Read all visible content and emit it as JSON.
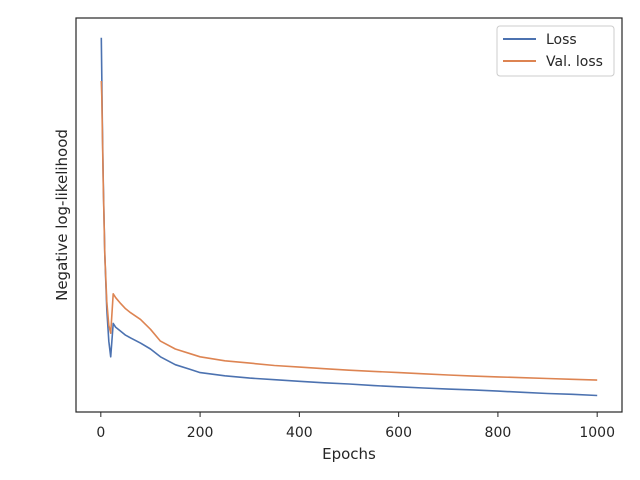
{
  "chart_data": {
    "type": "line",
    "title": "",
    "xlabel": "Epochs",
    "ylabel": "Negative log-likelihood",
    "xlim": [
      -50,
      1050
    ],
    "ylim": [
      0,
      1
    ],
    "x_ticks": [
      "0",
      "200",
      "400",
      "600",
      "800",
      "1000"
    ],
    "y_ticks_shown": false,
    "grid": false,
    "legend": "top-right",
    "series": [
      {
        "name": "Loss",
        "color": "#4c72b0",
        "x": [
          1,
          2,
          3,
          5,
          8,
          12,
          16,
          20,
          25,
          30,
          40,
          50,
          60,
          80,
          100,
          120,
          150,
          180,
          200,
          250,
          300,
          350,
          400,
          450,
          500,
          550,
          600,
          650,
          700,
          750,
          800,
          850,
          900,
          950,
          1000
        ],
        "values": [
          0.95,
          0.85,
          0.74,
          0.58,
          0.4,
          0.26,
          0.18,
          0.14,
          0.225,
          0.215,
          0.205,
          0.195,
          0.188,
          0.175,
          0.16,
          0.14,
          0.12,
          0.108,
          0.1,
          0.092,
          0.086,
          0.082,
          0.078,
          0.074,
          0.071,
          0.067,
          0.064,
          0.061,
          0.058,
          0.056,
          0.053,
          0.05,
          0.047,
          0.045,
          0.042
        ]
      },
      {
        "name": "Val. loss",
        "color": "#dd8452",
        "x": [
          1,
          2,
          3,
          5,
          8,
          12,
          16,
          20,
          25,
          30,
          40,
          50,
          60,
          80,
          100,
          120,
          150,
          180,
          200,
          250,
          300,
          350,
          400,
          450,
          500,
          550,
          600,
          650,
          700,
          750,
          800,
          850,
          900,
          950,
          1000
        ],
        "values": [
          0.84,
          0.8,
          0.72,
          0.57,
          0.4,
          0.28,
          0.22,
          0.2,
          0.3,
          0.29,
          0.275,
          0.262,
          0.252,
          0.235,
          0.21,
          0.18,
          0.16,
          0.148,
          0.14,
          0.13,
          0.124,
          0.118,
          0.114,
          0.11,
          0.106,
          0.103,
          0.1,
          0.097,
          0.094,
          0.091,
          0.089,
          0.087,
          0.085,
          0.083,
          0.081
        ]
      }
    ]
  }
}
